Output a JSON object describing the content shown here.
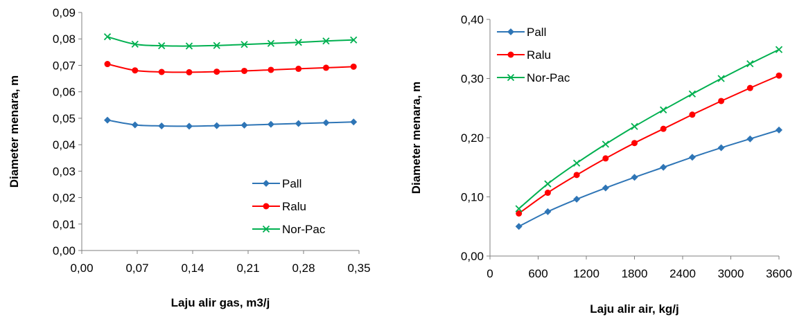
{
  "chart_data": [
    {
      "type": "line",
      "xlabel": "Laju alir gas, m3/j",
      "ylabel": "Diameter menara, m",
      "xlim": [
        0,
        0.35
      ],
      "ylim": [
        0,
        0.09
      ],
      "xticks": [
        "0,00",
        "0,07",
        "0,14",
        "0,21",
        "0,28",
        "0,35"
      ],
      "yticks": [
        "0,00",
        "0,01",
        "0,02",
        "0,03",
        "0,04",
        "0,05",
        "0,06",
        "0,07",
        "0,08",
        "0,09"
      ],
      "grid": false,
      "legend_position": "bottom-right",
      "x": [
        0.0324,
        0.0672,
        0.1008,
        0.1356,
        0.1704,
        0.2052,
        0.2388,
        0.2736,
        0.3084,
        0.3432
      ],
      "series": [
        {
          "name": "Pall",
          "color": "#2E75B6",
          "marker": "diamond",
          "values": [
            0.0493,
            0.0475,
            0.0471,
            0.047,
            0.0472,
            0.0474,
            0.0477,
            0.048,
            0.0483,
            0.0486
          ]
        },
        {
          "name": "Ralu",
          "color": "#FF0000",
          "marker": "circle",
          "values": [
            0.0705,
            0.0681,
            0.0675,
            0.0674,
            0.0676,
            0.0679,
            0.0683,
            0.0687,
            0.0691,
            0.0695
          ]
        },
        {
          "name": "Nor-Pac",
          "color": "#00B050",
          "marker": "x",
          "values": [
            0.0808,
            0.078,
            0.0774,
            0.0773,
            0.0775,
            0.0779,
            0.0783,
            0.0787,
            0.0792,
            0.0796
          ]
        }
      ]
    },
    {
      "type": "line",
      "xlabel": "Laju alir air, kg/j",
      "ylabel": "Diameter menara, m",
      "xlim": [
        0,
        3600
      ],
      "ylim": [
        0,
        0.4
      ],
      "xticks": [
        "0",
        "600",
        "1200",
        "1800",
        "2400",
        "3000",
        "3600"
      ],
      "yticks": [
        "0,00",
        "0,10",
        "0,20",
        "0,30",
        "0,40"
      ],
      "grid": false,
      "legend_position": "top-left",
      "x": [
        360,
        720,
        1080,
        1440,
        1800,
        2160,
        2520,
        2880,
        3240,
        3600
      ],
      "series": [
        {
          "name": "Pall",
          "color": "#2E75B6",
          "marker": "diamond",
          "values": [
            0.05,
            0.075,
            0.096,
            0.115,
            0.133,
            0.15,
            0.167,
            0.183,
            0.198,
            0.213
          ]
        },
        {
          "name": "Ralu",
          "color": "#FF0000",
          "marker": "circle",
          "values": [
            0.072,
            0.107,
            0.137,
            0.165,
            0.191,
            0.215,
            0.239,
            0.262,
            0.284,
            0.305
          ]
        },
        {
          "name": "Nor-Pac",
          "color": "#00B050",
          "marker": "x",
          "values": [
            0.08,
            0.122,
            0.157,
            0.189,
            0.219,
            0.247,
            0.274,
            0.3,
            0.325,
            0.349
          ]
        }
      ]
    }
  ]
}
